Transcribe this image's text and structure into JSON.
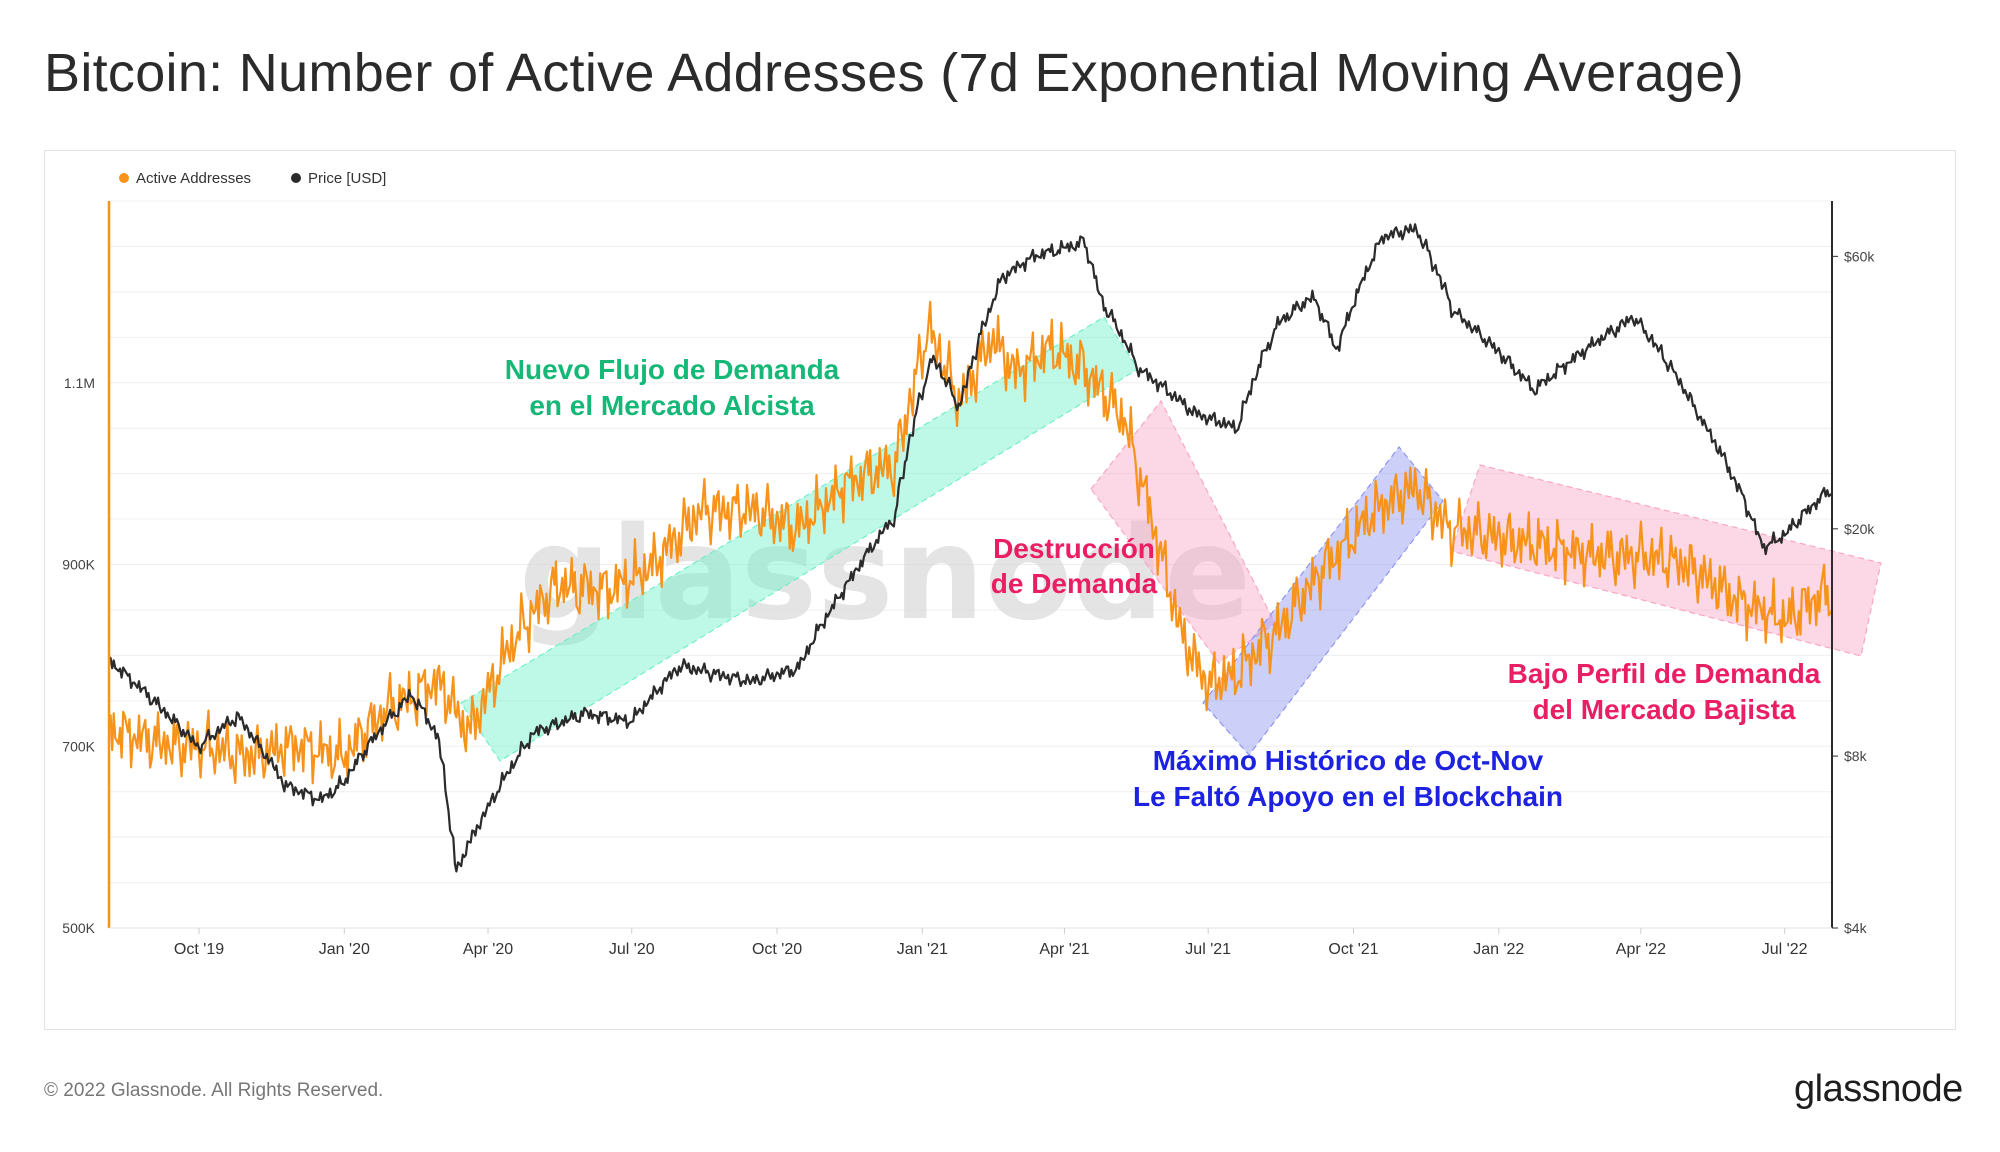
{
  "title": "Bitcoin: Number of Active Addresses (7d Exponential Moving Average)",
  "legend": {
    "active": "Active Addresses",
    "price": "Price [USD]"
  },
  "watermark": "glassnode",
  "footer": {
    "copyright": "© 2022 Glassnode. All Rights Reserved.",
    "logo": "glassnode"
  },
  "colors": {
    "active": "#f7931a",
    "price": "#2b2b2b",
    "green_text": "#16b877",
    "pink_text": "#ea1e63",
    "blue_text": "#1c22e0",
    "green_band": "#6ff0c8",
    "pink_band": "#f9a6c6",
    "blue_band": "#8f95f0"
  },
  "annotations": {
    "bull_line1": "Nuevo Flujo de Demanda",
    "bull_line2": "en el Mercado Alcista",
    "destroy_line1": "Destrucción",
    "destroy_line2": "de Demanda",
    "ath_line1": "Máximo Histórico de Oct-Nov",
    "ath_line2": "Le Faltó Apoyo en el Blockchain",
    "bear_line1": "Bajo Perfil de Demanda",
    "bear_line2": "del Mercado Bajista"
  },
  "chart_data": {
    "type": "line",
    "title": "Bitcoin: Number of Active Addresses (7d Exponential Moving Average)",
    "x_ticks": [
      "Oct '19",
      "Jan '20",
      "Apr '20",
      "Jul '20",
      "Oct '20",
      "Jan '21",
      "Apr '21",
      "Jul '21",
      "Oct '21",
      "Jan '22",
      "Apr '22",
      "Jul '22"
    ],
    "x_range": [
      "2019-08-05",
      "2022-07-31"
    ],
    "y_left": {
      "label": "Active Addresses",
      "ticks": [
        "500K",
        "700K",
        "900K",
        "1.1M"
      ],
      "tick_values": [
        500000,
        700000,
        900000,
        1100000
      ],
      "range": [
        500000,
        1300000
      ]
    },
    "y_right": {
      "label": "Price [USD]",
      "scale": "log",
      "ticks": [
        "$4k",
        "$8k",
        "$20k",
        "$60k"
      ],
      "tick_values": [
        4000,
        8000,
        20000,
        60000
      ],
      "range": [
        4000,
        75000
      ]
    },
    "legend_position": "top-left",
    "series": [
      {
        "name": "Active Addresses",
        "axis": "left",
        "points": [
          [
            "2019-08-05",
            720000
          ],
          [
            "2019-09-01",
            705000
          ],
          [
            "2019-10-01",
            700000
          ],
          [
            "2019-11-01",
            690000
          ],
          [
            "2019-12-01",
            700000
          ],
          [
            "2020-01-01",
            690000
          ],
          [
            "2020-02-01",
            745000
          ],
          [
            "2020-03-01",
            770000
          ],
          [
            "2020-03-20",
            715000
          ],
          [
            "2020-04-15",
            810000
          ],
          [
            "2020-05-15",
            880000
          ],
          [
            "2020-06-15",
            870000
          ],
          [
            "2020-07-15",
            900000
          ],
          [
            "2020-08-15",
            960000
          ],
          [
            "2020-09-15",
            960000
          ],
          [
            "2020-10-15",
            940000
          ],
          [
            "2020-11-15",
            990000
          ],
          [
            "2020-12-15",
            1010000
          ],
          [
            "2021-01-05",
            1160000
          ],
          [
            "2021-01-25",
            1080000
          ],
          [
            "2021-02-15",
            1150000
          ],
          [
            "2021-03-01",
            1110000
          ],
          [
            "2021-03-25",
            1140000
          ],
          [
            "2021-04-10",
            1120000
          ],
          [
            "2021-04-25",
            1090000
          ],
          [
            "2021-05-10",
            1060000
          ],
          [
            "2021-05-25",
            960000
          ],
          [
            "2021-06-15",
            820000
          ],
          [
            "2021-07-01",
            770000
          ],
          [
            "2021-07-20",
            780000
          ],
          [
            "2021-08-15",
            830000
          ],
          [
            "2021-09-15",
            900000
          ],
          [
            "2021-10-15",
            960000
          ],
          [
            "2021-11-10",
            985000
          ],
          [
            "2021-12-01",
            940000
          ],
          [
            "2022-01-01",
            930000
          ],
          [
            "2022-02-01",
            920000
          ],
          [
            "2022-03-01",
            910000
          ],
          [
            "2022-04-01",
            910000
          ],
          [
            "2022-05-01",
            900000
          ],
          [
            "2022-06-01",
            860000
          ],
          [
            "2022-07-01",
            840000
          ],
          [
            "2022-07-31",
            870000
          ]
        ]
      },
      {
        "name": "Price [USD]",
        "axis": "right",
        "points": [
          [
            "2019-08-05",
            11800
          ],
          [
            "2019-09-01",
            10100
          ],
          [
            "2019-10-01",
            8300
          ],
          [
            "2019-10-26",
            9400
          ],
          [
            "2019-11-25",
            7100
          ],
          [
            "2019-12-18",
            6700
          ],
          [
            "2020-01-01",
            7200
          ],
          [
            "2020-02-13",
            10300
          ],
          [
            "2020-03-01",
            8600
          ],
          [
            "2020-03-12",
            5000
          ],
          [
            "2020-03-31",
            6400
          ],
          [
            "2020-05-01",
            8800
          ],
          [
            "2020-06-01",
            9500
          ],
          [
            "2020-07-01",
            9200
          ],
          [
            "2020-08-01",
            11500
          ],
          [
            "2020-09-15",
            10800
          ],
          [
            "2020-10-15",
            11400
          ],
          [
            "2020-11-15",
            16000
          ],
          [
            "2020-12-15",
            21000
          ],
          [
            "2021-01-08",
            40000
          ],
          [
            "2021-01-25",
            32500
          ],
          [
            "2021-02-21",
            55000
          ],
          [
            "2021-03-13",
            60000
          ],
          [
            "2021-04-14",
            63500
          ],
          [
            "2021-04-25",
            50000
          ],
          [
            "2021-05-19",
            38000
          ],
          [
            "2021-06-22",
            32000
          ],
          [
            "2021-07-20",
            30000
          ],
          [
            "2021-08-15",
            46000
          ],
          [
            "2021-09-06",
            51000
          ],
          [
            "2021-09-21",
            41000
          ],
          [
            "2021-10-20",
            65000
          ],
          [
            "2021-11-10",
            67000
          ],
          [
            "2021-12-04",
            48000
          ],
          [
            "2022-01-24",
            35000
          ],
          [
            "2022-03-28",
            47000
          ],
          [
            "2022-05-10",
            31000
          ],
          [
            "2022-06-18",
            18500
          ],
          [
            "2022-07-01",
            19500
          ],
          [
            "2022-07-31",
            23500
          ]
        ]
      }
    ],
    "annotation_bands": [
      {
        "label": "Nuevo Flujo de Demanda en el Mercado Alcista",
        "from": "2020-03-01",
        "to": "2021-05-10"
      },
      {
        "label": "Destrucción de Demanda",
        "from": "2021-04-25",
        "to": "2021-07-15"
      },
      {
        "label": "Máximo Histórico de Oct-Nov Le Faltó Apoyo en el Blockchain",
        "from": "2021-06-20",
        "to": "2021-11-25"
      },
      {
        "label": "Bajo Perfil de Demanda del Mercado Bajista",
        "from": "2021-11-25",
        "to": "2022-07-31"
      }
    ]
  }
}
